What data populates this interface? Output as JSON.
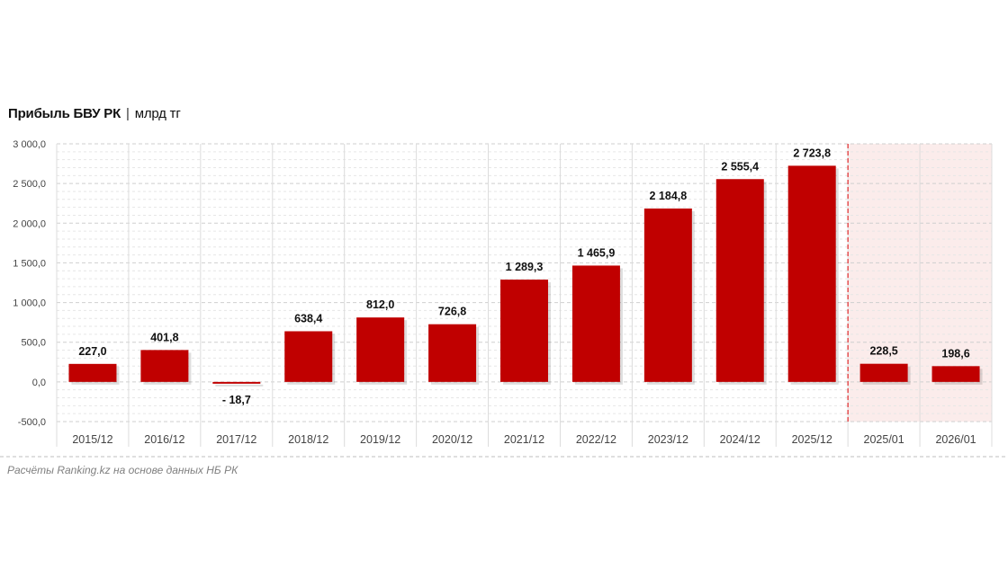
{
  "chart_data": {
    "type": "bar",
    "title": "Прибыль БВУ РК",
    "title_separator": "|",
    "unit": "млрд тг",
    "categories": [
      "2015/12",
      "2016/12",
      "2017/12",
      "2018/12",
      "2019/12",
      "2020/12",
      "2021/12",
      "2022/12",
      "2023/12",
      "2024/12",
      "2025/12",
      "2025/01",
      "2026/01"
    ],
    "values": [
      227.0,
      401.8,
      -18.7,
      638.4,
      812.0,
      726.8,
      1289.3,
      1465.9,
      2184.8,
      2555.4,
      2723.8,
      228.5,
      198.6
    ],
    "value_labels": [
      "227,0",
      "401,8",
      "- 18,7",
      "638,4",
      "812,0",
      "726,8",
      "1 289,3",
      "1 465,9",
      "2 184,8",
      "2 555,4",
      "2 723,8",
      "228,5",
      "198,6"
    ],
    "ylim": [
      -500,
      3000
    ],
    "yticks": [
      3000,
      2500,
      2000,
      1500,
      1000,
      500,
      0,
      -500
    ],
    "ytick_labels": [
      "3 000,0",
      "2 500,0",
      "2 000,0",
      "1 500,0",
      "1 000,0",
      "500,0",
      "0,0",
      "-500,0"
    ],
    "grid": true,
    "highlighted_categories": [
      "2025/01",
      "2026/01"
    ],
    "colors": {
      "bar": "#c00000",
      "highlight_background": "#fbeceb",
      "divider": "#e0383a",
      "grid": "#d9d9d9"
    }
  },
  "source_note": "Расчёты Ranking.kz на основе данных НБ РК"
}
